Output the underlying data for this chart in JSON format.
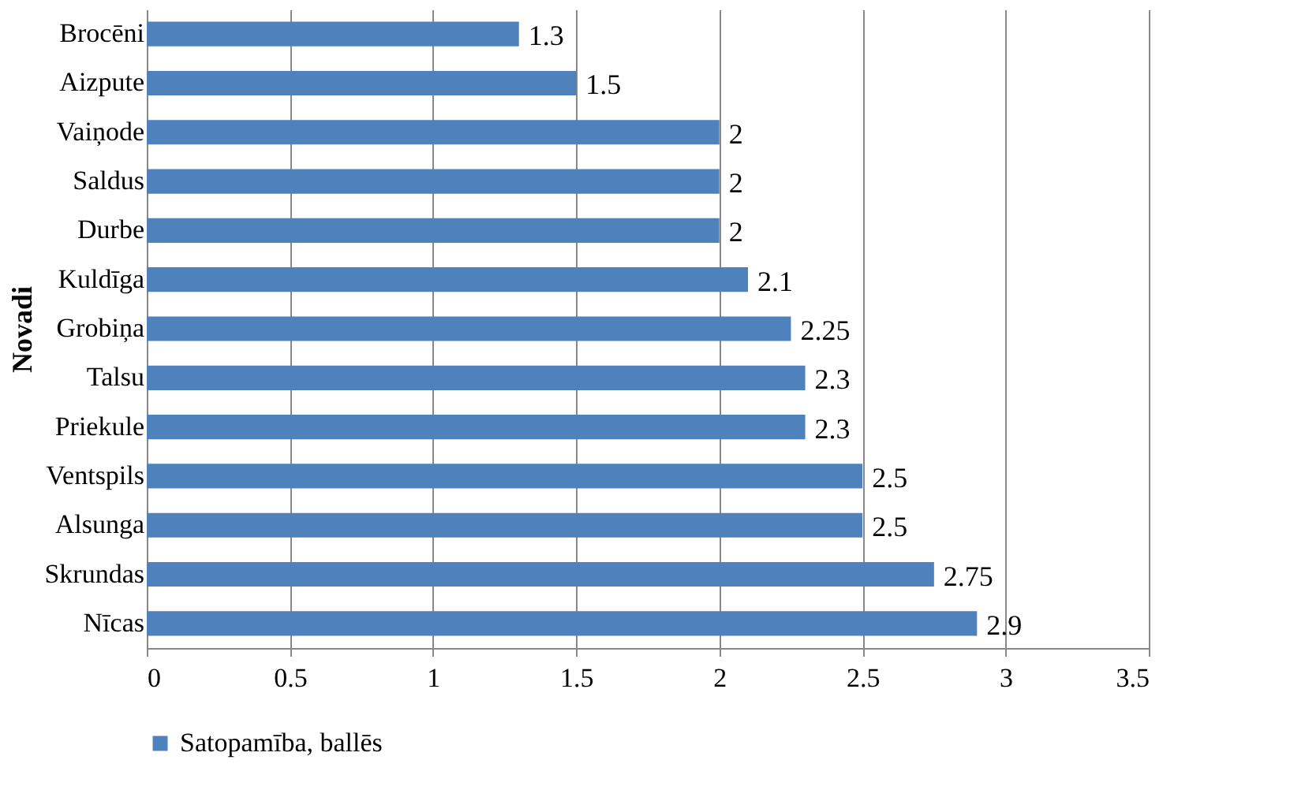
{
  "chart_data": {
    "type": "bar",
    "orientation": "horizontal",
    "ylabel": "Novadi",
    "categories": [
      "Brocēni",
      "Aizpute",
      "Vaiņode",
      "Saldus",
      "Durbe",
      "Kuldīga",
      "Grobiņa",
      "Talsu",
      "Priekule",
      "Ventspils",
      "Alsunga",
      "Skrundas",
      "Nīcas"
    ],
    "series": [
      {
        "name": "Satopamība, ballēs",
        "color": "#4f81bd",
        "values": [
          1.3,
          1.5,
          2,
          2,
          2,
          2.1,
          2.25,
          2.3,
          2.3,
          2.5,
          2.5,
          2.75,
          2.9
        ]
      }
    ],
    "xlim": [
      0,
      3.5
    ],
    "xticks": [
      0,
      0.5,
      1,
      1.5,
      2,
      2.5,
      3,
      3.5
    ],
    "grid": "x",
    "legend": "bottom",
    "data_labels": true
  }
}
